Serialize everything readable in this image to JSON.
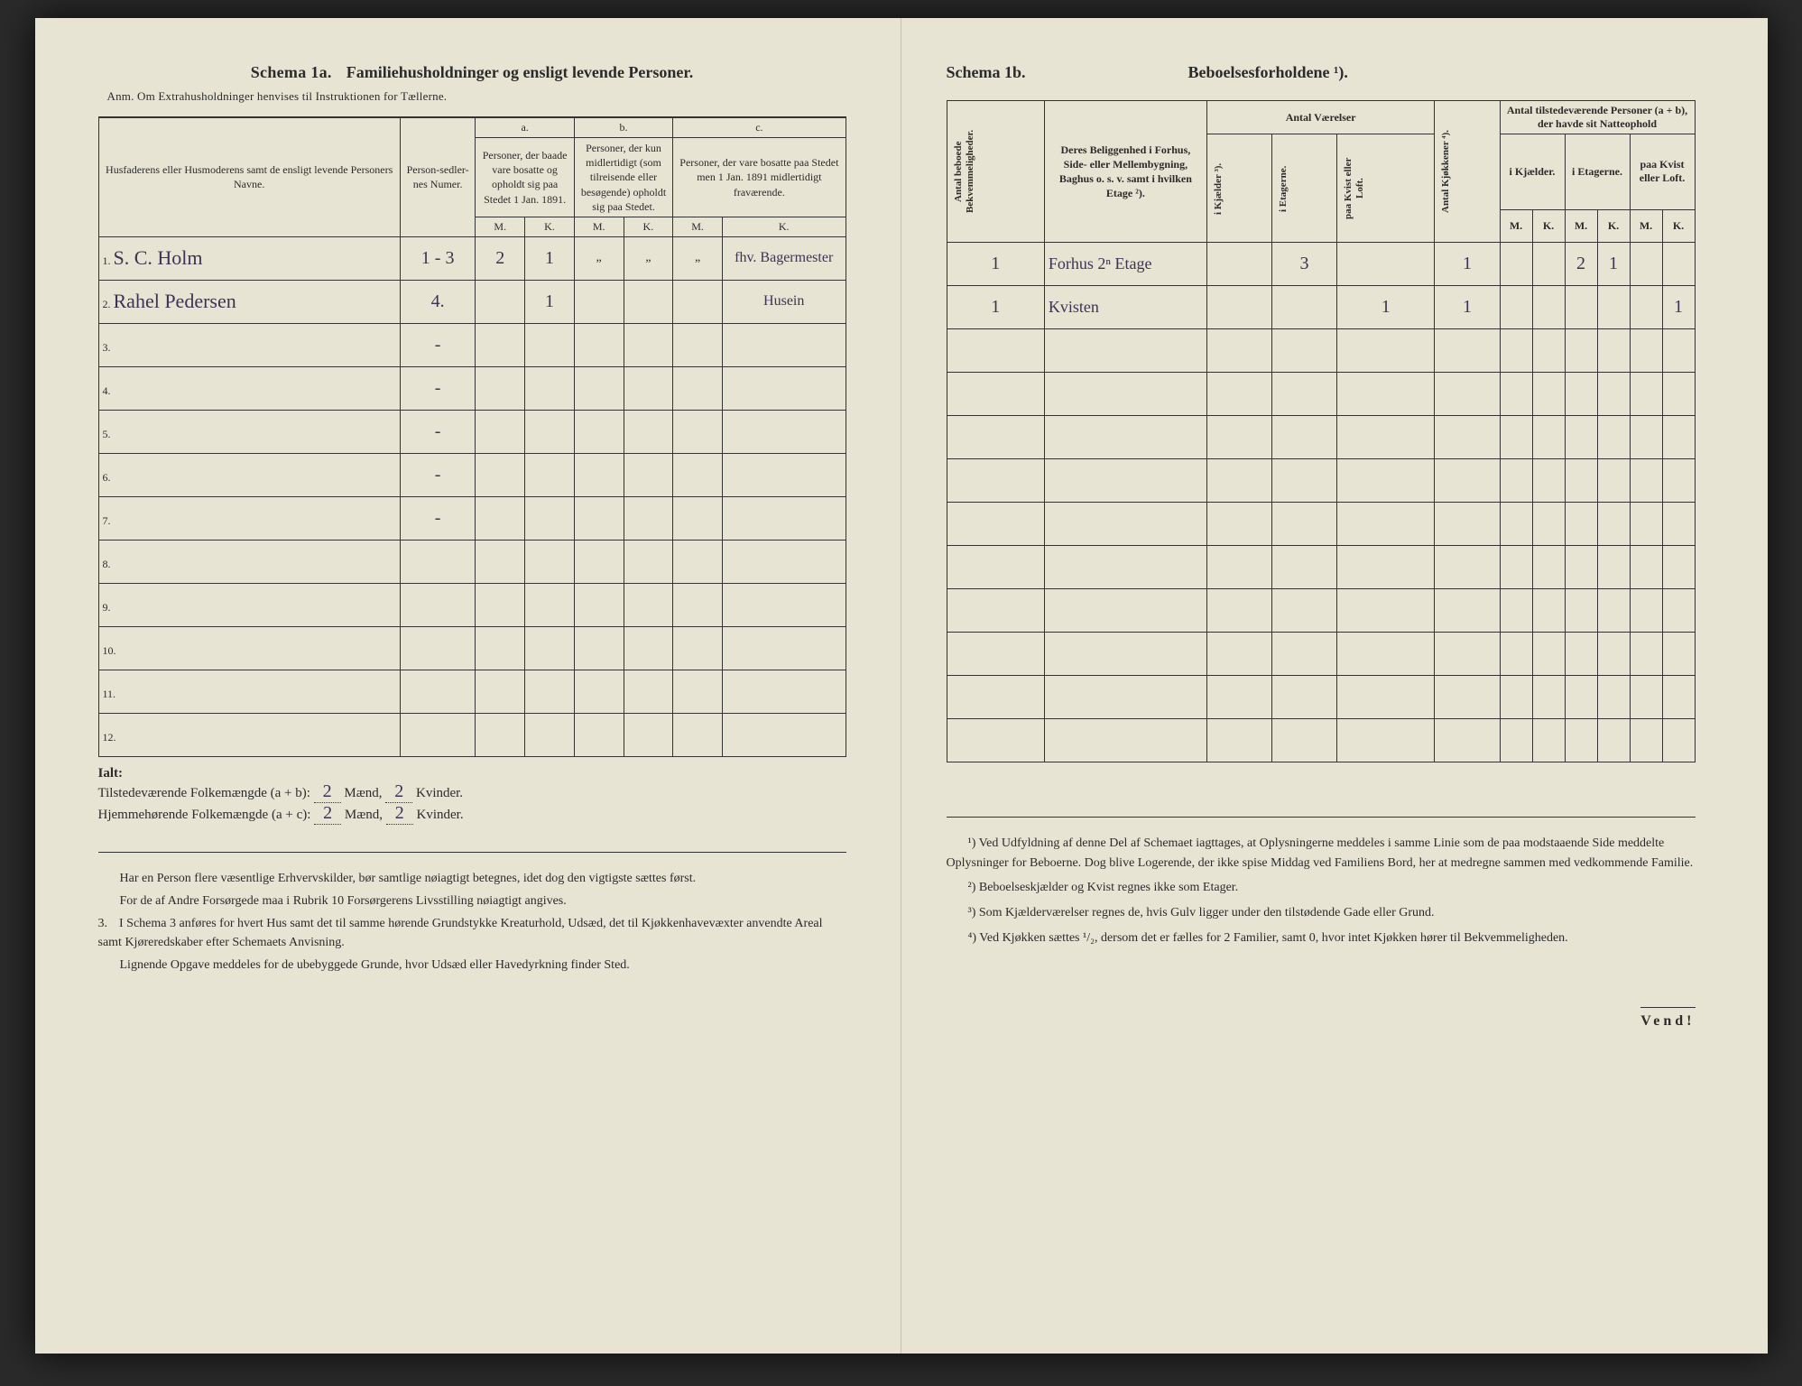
{
  "left": {
    "titleA": "Schema 1a.",
    "titleB": "Familiehusholdninger og ensligt levende Personer.",
    "anm": "Anm. Om Extrahusholdninger henvises til Instruktionen for Tællerne.",
    "header": {
      "name": "Husfaderens eller Husmoderens samt de ensligt levende Personers Navne.",
      "personnum": "Person-sedler-nes Numer.",
      "a_label": "a.",
      "a_text": "Personer, der baade vare bosatte og opholdt sig paa Stedet 1 Jan. 1891.",
      "b_label": "b.",
      "b_text": "Personer, der kun midlertidigt (som tilreisende eller besøgende) opholdt sig paa Stedet.",
      "c_label": "c.",
      "c_text": "Personer, der vare bosatte paa Stedet men 1 Jan. 1891 midlertidigt fraværende.",
      "M": "M.",
      "K": "K."
    },
    "rows": [
      {
        "n": "1.",
        "name": "S. C. Holm",
        "num": "1 - 3",
        "aM": "2",
        "aK": "1",
        "bM": "„",
        "bK": "„",
        "cM": "„",
        "cK": "fhv. Bagermester"
      },
      {
        "n": "2.",
        "name": "Rahel Pedersen",
        "num": "4.",
        "aM": "",
        "aK": "1",
        "bM": "",
        "bK": "",
        "cM": "",
        "cK": "Husein"
      },
      {
        "n": "3.",
        "name": "",
        "num": "-",
        "aM": "",
        "aK": "",
        "bM": "",
        "bK": "",
        "cM": "",
        "cK": ""
      },
      {
        "n": "4.",
        "name": "",
        "num": "-",
        "aM": "",
        "aK": "",
        "bM": "",
        "bK": "",
        "cM": "",
        "cK": ""
      },
      {
        "n": "5.",
        "name": "",
        "num": "-",
        "aM": "",
        "aK": "",
        "bM": "",
        "bK": "",
        "cM": "",
        "cK": ""
      },
      {
        "n": "6.",
        "name": "",
        "num": "-",
        "aM": "",
        "aK": "",
        "bM": "",
        "bK": "",
        "cM": "",
        "cK": ""
      },
      {
        "n": "7.",
        "name": "",
        "num": "-",
        "aM": "",
        "aK": "",
        "bM": "",
        "bK": "",
        "cM": "",
        "cK": ""
      },
      {
        "n": "8.",
        "name": "",
        "num": "",
        "aM": "",
        "aK": "",
        "bM": "",
        "bK": "",
        "cM": "",
        "cK": ""
      },
      {
        "n": "9.",
        "name": "",
        "num": "",
        "aM": "",
        "aK": "",
        "bM": "",
        "bK": "",
        "cM": "",
        "cK": ""
      },
      {
        "n": "10.",
        "name": "",
        "num": "",
        "aM": "",
        "aK": "",
        "bM": "",
        "bK": "",
        "cM": "",
        "cK": ""
      },
      {
        "n": "11.",
        "name": "",
        "num": "",
        "aM": "",
        "aK": "",
        "bM": "",
        "bK": "",
        "cM": "",
        "cK": ""
      },
      {
        "n": "12.",
        "name": "",
        "num": "",
        "aM": "",
        "aK": "",
        "bM": "",
        "bK": "",
        "cM": "",
        "cK": ""
      }
    ],
    "ialt_label": "Ialt:",
    "tilstede_line": "Tilstedeværende Folkemængde (a + b): ",
    "hjemme_line": "Hjemmehørende Folkemængde (a + c): ",
    "maend": " Mænd, ",
    "kvinder": " Kvinder.",
    "tilstede_m": "2",
    "tilstede_k": "2",
    "hjemme_m": "2",
    "hjemme_k": "2",
    "notes": {
      "p1": "Har en Person flere væsentlige Erhvervskilder, bør samtlige nøiagtigt betegnes, idet dog den vigtigste sættes først.",
      "p2": "For de af Andre Forsørgede maa i Rubrik 10 Forsørgerens Livsstilling nøiagtigt angives.",
      "p3n": "3.",
      "p3": "I Schema 3 anføres for hvert Hus samt det til samme hørende Grundstykke Kreaturhold, Udsæd, det til Kjøkkenhavevæxter anvendte Areal samt Kjøreredskaber efter Schemaets Anvisning.",
      "p4": "Lignende Opgave meddeles for de ubebyggede Grunde, hvor Udsæd eller Havedyrkning finder Sted."
    }
  },
  "right": {
    "titleA": "Schema 1b.",
    "titleB": "Beboelsesforholdene ¹).",
    "header": {
      "col1": "Antal beboede Bekvemmeligheder.",
      "col2": "Deres Beliggenhed i Forhus, Side- eller Mellembygning, Baghus o. s. v. samt i hvilken Etage ²).",
      "antal_vaer": "Antal Værelser",
      "kjaelder": "i Kjælder ³).",
      "etagerne": "i Etagerne.",
      "kvist": "paa Kvist eller Loft.",
      "kjokken": "Antal Kjøkkener ⁴).",
      "antal_personer": "Antal tilstedeværende Personer (a + b), der havde sit Natteophold",
      "i_kjael": "i Kjælder.",
      "i_etag": "i Etagerne.",
      "paa_kvist": "paa Kvist eller Loft.",
      "M": "M.",
      "K": "K."
    },
    "rows": [
      {
        "n": "1",
        "desc": "Forhus 2ⁿ Etage",
        "kj": "",
        "et": "3",
        "kv": "",
        "kjok": "1",
        "kjM": "",
        "kjK": "",
        "etM": "2",
        "etK": "1",
        "kvM": "",
        "kvK": ""
      },
      {
        "n": "1",
        "desc": "Kvisten",
        "kj": "",
        "et": "",
        "kv": "1",
        "kjok": "1",
        "kjM": "",
        "kjK": "",
        "etM": "",
        "etK": "",
        "kvM": "",
        "kvK": "1"
      }
    ],
    "footnotes": {
      "f1": "¹) Ved Udfyldning af denne Del af Schemaet iagttages, at Oplysningerne meddeles i samme Linie som de paa modstaaende Side meddelte Oplysninger for Beboerne. Dog blive Logerende, der ikke spise Middag ved Familiens Bord, her at medregne sammen med vedkommende Familie.",
      "f2": "²) Beboelseskjælder og Kvist regnes ikke som Etager.",
      "f3": "³) Som Kjælderværelser regnes de, hvis Gulv ligger under den tilstødende Gade eller Grund.",
      "f4": "⁴) Ved Kjøkken sættes ¹/₂, dersom det er fælles for 2 Familier, samt 0, hvor intet Kjøkken hører til Bekvemmeligheden."
    },
    "vend": "Vend!"
  },
  "colors": {
    "paper": "#e8e4d4",
    "ink": "#2b2b2b",
    "hand": "#3b3355"
  }
}
